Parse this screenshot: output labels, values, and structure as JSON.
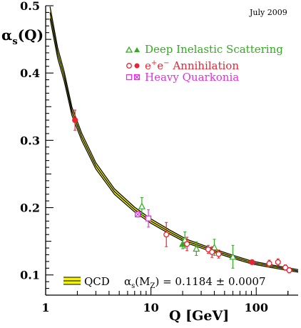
{
  "chart_data": {
    "type": "scatter",
    "title": "",
    "note": "July 2009",
    "xlabel": "Q [GeV]",
    "ylabel": "αs(Q)",
    "xscale": "log",
    "xlim": [
      1,
      250
    ],
    "ylim": [
      0.07,
      0.5
    ],
    "x_ticks": [
      {
        "value": 1,
        "label": "1"
      },
      {
        "value": 10,
        "label": "10"
      },
      {
        "value": 100,
        "label": "100"
      }
    ],
    "y_ticks": [
      {
        "value": 0.1,
        "label": "0.1"
      },
      {
        "value": 0.2,
        "label": "0.2"
      },
      {
        "value": 0.3,
        "label": "0.3"
      },
      {
        "value": 0.4,
        "label": "0.4"
      },
      {
        "value": 0.5,
        "label": "0.5"
      }
    ],
    "grid": false,
    "legend_position": "top-right",
    "band": {
      "name": "QCD",
      "fill_color": "#f4f400",
      "line_color": "#000000",
      "center": [
        {
          "x": 1.1,
          "y": 0.49
        },
        {
          "x": 1.3,
          "y": 0.43
        },
        {
          "x": 1.5,
          "y": 0.395
        },
        {
          "x": 1.777,
          "y": 0.343
        },
        {
          "x": 2.2,
          "y": 0.305
        },
        {
          "x": 3.0,
          "y": 0.262
        },
        {
          "x": 4.5,
          "y": 0.224
        },
        {
          "x": 7.0,
          "y": 0.197
        },
        {
          "x": 10,
          "y": 0.18
        },
        {
          "x": 15,
          "y": 0.164
        },
        {
          "x": 22,
          "y": 0.15
        },
        {
          "x": 35,
          "y": 0.139
        },
        {
          "x": 60,
          "y": 0.127
        },
        {
          "x": 91.2,
          "y": 0.1184
        },
        {
          "x": 150,
          "y": 0.112
        },
        {
          "x": 250,
          "y": 0.106
        }
      ],
      "relative_width": 0.018
    },
    "series": [
      {
        "name": "Deep Inelastic Scattering",
        "marker": "triangle",
        "color": "#33aa22",
        "points": [
          {
            "x": 8.2,
            "y": 0.202,
            "err": 0.013,
            "filled": false
          },
          {
            "x": 20,
            "y": 0.146,
            "err": 0.007,
            "filled": true
          },
          {
            "x": 21,
            "y": 0.152,
            "err": 0.012,
            "filled": false
          },
          {
            "x": 27,
            "y": 0.139,
            "err": 0.01,
            "filled": false
          },
          {
            "x": 40,
            "y": 0.141,
            "err": 0.012,
            "filled": false
          },
          {
            "x": 60,
            "y": 0.127,
            "err": 0.017,
            "filled": false
          }
        ]
      },
      {
        "name": "e+e− Annihilation",
        "marker": "circle",
        "color": "#ee2233",
        "points": [
          {
            "x": 1.9,
            "y": 0.33,
            "err": 0.015,
            "filled": true
          },
          {
            "x": 14,
            "y": 0.16,
            "err": 0.018,
            "filled": false
          },
          {
            "x": 22,
            "y": 0.146,
            "err": 0.01,
            "filled": false
          },
          {
            "x": 35,
            "y": 0.138,
            "err": 0.006,
            "filled": false
          },
          {
            "x": 38,
            "y": 0.134,
            "err": 0.008,
            "filled": false
          },
          {
            "x": 44,
            "y": 0.131,
            "err": 0.006,
            "filled": false
          },
          {
            "x": 91.2,
            "y": 0.119,
            "err": 0.003,
            "filled": true
          },
          {
            "x": 133,
            "y": 0.117,
            "err": 0.005,
            "filled": false
          },
          {
            "x": 161,
            "y": 0.119,
            "err": 0.005,
            "filled": false
          },
          {
            "x": 189,
            "y": 0.111,
            "err": 0.004,
            "filled": false
          },
          {
            "x": 206,
            "y": 0.107,
            "err": 0.004,
            "filled": false
          }
        ]
      },
      {
        "name": "Heavy Quarkonia",
        "marker": "square",
        "color": "#dd33dd",
        "points": [
          {
            "x": 7.5,
            "y": 0.19,
            "err": 0.004,
            "filled": true
          },
          {
            "x": 9.46,
            "y": 0.184,
            "err": 0.013,
            "filled": false
          }
        ]
      }
    ],
    "legend": {
      "dis_label": "Deep Inelastic Scattering",
      "ee_label_prefix": "e",
      "ee_label_sup1": "+",
      "ee_label_mid": "e",
      "ee_label_sup2": "−",
      "ee_label_suffix": " Annihilation",
      "hq_label": "Heavy Quarkonia",
      "qcd_label": "QCD",
      "alpha_result_symbol": "α",
      "alpha_result_sub": "s",
      "alpha_result_rest": "(M",
      "alpha_result_sub2": "Z",
      "alpha_result_value": ") = 0.1184 ± 0.0007"
    },
    "ylabel_parts": {
      "symbol": "α",
      "sub": "s",
      "rest": "(Q)"
    }
  }
}
